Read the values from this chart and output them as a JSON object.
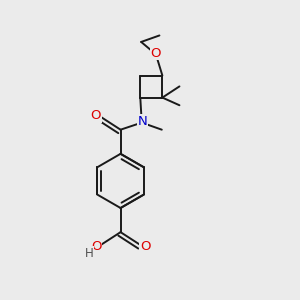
{
  "bg_color": "#ebebeb",
  "bond_color": "#1a1a1a",
  "bond_width": 1.4,
  "atom_colors": {
    "O": "#dd0000",
    "N": "#0000cc",
    "C": "#1a1a1a",
    "H": "#505050"
  },
  "font_size": 8.5,
  "fig_size": [
    3.0,
    3.0
  ],
  "dpi": 100
}
